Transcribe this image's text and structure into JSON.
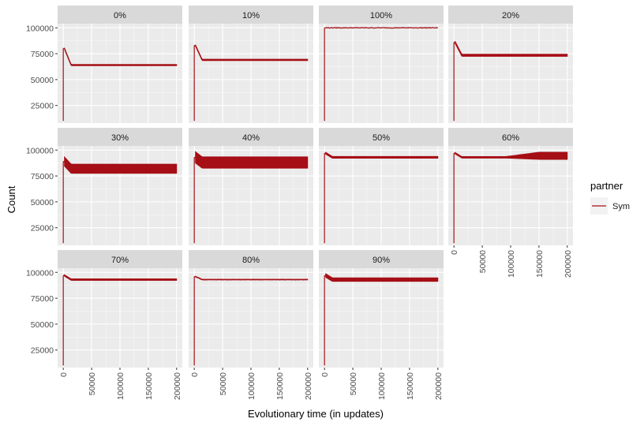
{
  "chart_data": {
    "type": "line",
    "xlabel": "Evolutionary time (in updates)",
    "ylabel": "Count",
    "xlim": [
      -10000,
      210000
    ],
    "ylim": [
      8000,
      104000
    ],
    "x_ticks": [
      0,
      50000,
      100000,
      150000,
      200000
    ],
    "x_tick_labels": [
      "0",
      "50000",
      "100000",
      "150000",
      "200000"
    ],
    "y_ticks": [
      25000,
      50000,
      75000,
      100000
    ],
    "y_tick_labels": [
      "25000",
      "50000",
      "75000",
      "100000"
    ],
    "grid": true,
    "legend": {
      "title": "partner",
      "position": "right",
      "entries": [
        {
          "label": "Sym",
          "color": "#a50f15"
        }
      ]
    },
    "series_color": "#a50f15",
    "panels": [
      {
        "label": "0%",
        "start": 10000,
        "peak": 80000,
        "mean": 64000,
        "band": 1200,
        "end_mean": 64000
      },
      {
        "label": "10%",
        "start": 10000,
        "peak": 83000,
        "mean": 69000,
        "band": 1400,
        "end_mean": 69000
      },
      {
        "label": "100%",
        "start": 10000,
        "peak": 100000,
        "mean": 100000,
        "band": 0,
        "end_mean": 100000
      },
      {
        "label": "20%",
        "start": 10000,
        "peak": 86000,
        "mean": 73500,
        "band": 2200,
        "end_mean": 73500
      },
      {
        "label": "30%",
        "start": 10000,
        "peak": 89000,
        "mean": 82000,
        "band": 9000,
        "end_mean": 82000
      },
      {
        "label": "40%",
        "start": 10000,
        "peak": 93000,
        "mean": 88000,
        "band": 11000,
        "end_mean": 88000
      },
      {
        "label": "50%",
        "start": 10000,
        "peak": 97000,
        "mean": 93000,
        "band": 1800,
        "end_mean": 93000
      },
      {
        "label": "60%",
        "start": 10000,
        "peak": 97000,
        "mean": 93000,
        "band": 1500,
        "end_mean": 94500,
        "end_band": 7000
      },
      {
        "label": "70%",
        "start": 10000,
        "peak": 97000,
        "mean": 93000,
        "band": 1500,
        "end_mean": 93000
      },
      {
        "label": "80%",
        "start": 10000,
        "peak": 96000,
        "mean": 93000,
        "band": 600,
        "end_mean": 93000
      },
      {
        "label": "90%",
        "start": 10000,
        "peak": 97000,
        "mean": 93000,
        "band": 3500,
        "end_mean": 93000
      }
    ]
  }
}
